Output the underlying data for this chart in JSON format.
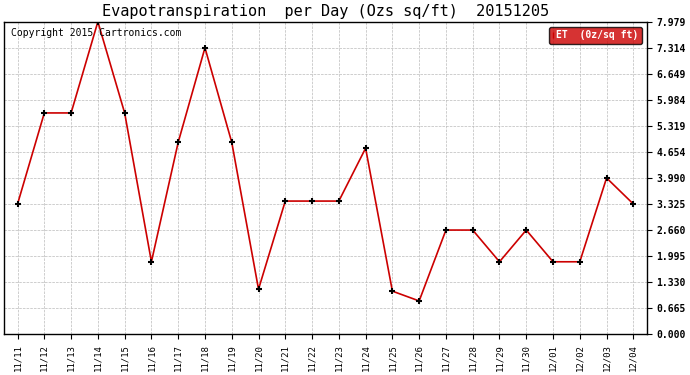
{
  "title": "Evapotranspiration  per Day (Ozs sq/ft)  20151205",
  "copyright_text": "Copyright 2015 Cartronics.com",
  "legend_label": "ET  (0z/sq ft)",
  "x_labels": [
    "11/11",
    "11/12",
    "11/13",
    "11/14",
    "11/15",
    "11/16",
    "11/17",
    "11/18",
    "11/19",
    "11/20",
    "11/21",
    "11/22",
    "11/23",
    "11/24",
    "11/25",
    "11/26",
    "11/27",
    "11/28",
    "11/29",
    "11/30",
    "12/01",
    "12/02",
    "12/03",
    "12/04"
  ],
  "y_values": [
    3.325,
    5.65,
    5.65,
    7.979,
    5.65,
    1.85,
    4.9,
    7.314,
    4.9,
    1.15,
    3.4,
    3.4,
    3.4,
    4.75,
    1.1,
    0.85,
    2.66,
    2.66,
    1.85,
    2.66,
    1.85,
    1.85,
    3.99,
    3.325
  ],
  "ytick_values": [
    0.0,
    0.665,
    1.33,
    1.995,
    2.66,
    3.325,
    3.99,
    4.654,
    5.319,
    5.984,
    6.649,
    7.314,
    7.979
  ],
  "ymax": 7.979,
  "ymin": 0.0,
  "line_color": "#cc0000",
  "marker_color": "#000000",
  "bg_color": "#ffffff",
  "grid_color": "#bbbbbb",
  "title_fontsize": 11,
  "copyright_fontsize": 7,
  "legend_bg": "#cc0000",
  "legend_fg": "#ffffff"
}
